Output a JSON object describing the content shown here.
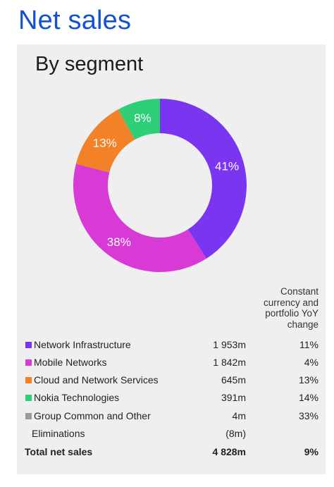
{
  "page": {
    "title": "Net sales"
  },
  "panel": {
    "title": "By segment"
  },
  "table": {
    "column_header": "Constant currency and portfolio YoY change",
    "rows": [
      {
        "label": "Network Infrastructure",
        "value": "1 953m",
        "change": "11%",
        "color": "#7a35f0"
      },
      {
        "label": "Mobile Networks",
        "value": "1 842m",
        "change": "4%",
        "color": "#d83ad6"
      },
      {
        "label": "Cloud and Network Services",
        "value": "645m",
        "change": "13%",
        "color": "#f28127"
      },
      {
        "label": "Nokia Technologies",
        "value": "391m",
        "change": "14%",
        "color": "#2fcf78"
      },
      {
        "label": "Group Common and Other",
        "value": "4m",
        "change": "33%",
        "color": "#9a9a9a"
      },
      {
        "label": "Eliminations",
        "value": "(8m)",
        "change": ""
      }
    ],
    "total": {
      "label": "Total net sales",
      "value": "4 828m",
      "change": "9%"
    }
  },
  "chart_data": {
    "type": "pie",
    "donut": true,
    "labels": [
      "Network Infrastructure",
      "Mobile Networks",
      "Cloud and Network Services",
      "Nokia Technologies"
    ],
    "values": [
      41,
      38,
      13,
      8
    ],
    "value_labels": [
      "41%",
      "38%",
      "13%",
      "8%"
    ],
    "colors": [
      "#7a35f0",
      "#d83ad6",
      "#f28127",
      "#2fcf78"
    ]
  }
}
